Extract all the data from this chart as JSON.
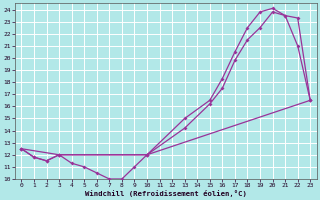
{
  "xlabel": "Windchill (Refroidissement éolien,°C)",
  "background_color": "#b2e8e8",
  "grid_color": "#ffffff",
  "line_color": "#993399",
  "xlim": [
    -0.5,
    23.5
  ],
  "ylim": [
    10,
    24.5
  ],
  "xticks": [
    0,
    1,
    2,
    3,
    4,
    5,
    6,
    7,
    8,
    9,
    10,
    11,
    12,
    13,
    14,
    15,
    16,
    17,
    18,
    19,
    20,
    21,
    22,
    23
  ],
  "yticks": [
    10,
    11,
    12,
    13,
    14,
    15,
    16,
    17,
    18,
    19,
    20,
    21,
    22,
    23,
    24
  ],
  "curve1_x": [
    0,
    1,
    2,
    3,
    4,
    5,
    6,
    7,
    8,
    9,
    10,
    23
  ],
  "curve1_y": [
    12.5,
    11.8,
    11.5,
    12.0,
    11.3,
    11.0,
    10.5,
    10.0,
    10.0,
    11.0,
    12.0,
    16.5
  ],
  "curve2_x": [
    0,
    1,
    2,
    3,
    10,
    13,
    15,
    16,
    17,
    18,
    19,
    20,
    21,
    22,
    23
  ],
  "curve2_y": [
    12.5,
    11.8,
    11.5,
    12.0,
    12.0,
    14.2,
    16.2,
    17.5,
    19.8,
    21.5,
    22.5,
    23.8,
    23.5,
    23.3,
    16.5
  ],
  "curve3_x": [
    0,
    3,
    10,
    13,
    15,
    16,
    17,
    18,
    19,
    20,
    21,
    22,
    23
  ],
  "curve3_y": [
    12.5,
    12.0,
    12.0,
    15.0,
    16.5,
    18.3,
    20.5,
    22.5,
    23.8,
    24.1,
    23.5,
    21.0,
    16.5
  ]
}
